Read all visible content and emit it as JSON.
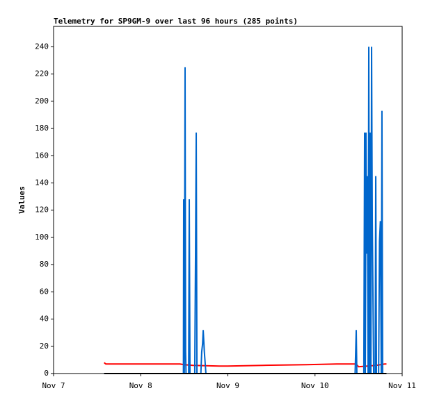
{
  "chart_data": {
    "type": "line",
    "title": "Telemetry for SP9GM-9 over last 96 hours (285 points)",
    "y_label": "Values",
    "xlim": [
      7,
      11
    ],
    "xticks": [
      {
        "value": 7,
        "label": "Nov 7"
      },
      {
        "value": 8,
        "label": "Nov 8"
      },
      {
        "value": 9,
        "label": "Nov 9"
      },
      {
        "value": 10,
        "label": "Nov 10"
      },
      {
        "value": 11,
        "label": "Nov 11"
      }
    ],
    "ylim": [
      0,
      255
    ],
    "yticks": [
      0,
      20,
      40,
      60,
      80,
      100,
      120,
      140,
      160,
      180,
      200,
      220,
      240
    ],
    "series": [
      {
        "color": "#ff0000",
        "x": [
          7.58,
          7.6,
          8.45,
          8.5,
          8.6,
          8.9,
          9.0,
          9.4,
          9.9,
          10.25,
          10.47,
          10.5,
          10.6,
          10.7,
          10.8,
          10.82
        ],
        "values": [
          8,
          7,
          7,
          6.5,
          6,
          5.5,
          5.5,
          6,
          6.5,
          7,
          7,
          5,
          5.5,
          6,
          7,
          7
        ]
      },
      {
        "color": "#0066cc",
        "x": [
          7.58,
          8.49,
          8.493,
          8.5,
          8.509,
          8.515,
          8.52,
          8.55,
          8.557,
          8.565,
          8.62,
          8.629,
          8.637,
          8.645,
          8.69,
          8.7,
          8.71,
          8.717,
          8.73,
          8.748,
          10.46,
          10.473,
          10.48,
          10.56,
          10.569,
          10.577,
          10.585,
          10.593,
          10.601,
          10.609,
          10.617,
          10.625,
          10.633,
          10.641,
          10.649,
          10.657,
          10.665,
          10.673,
          10.681,
          10.69,
          10.697,
          10.705,
          10.73,
          10.74,
          10.75,
          10.76,
          10.768,
          10.776,
          10.784
        ],
        "values": [
          0,
          0,
          128,
          0,
          225,
          16,
          0,
          0,
          128,
          0,
          0,
          88,
          177,
          0,
          0,
          16,
          22,
          32,
          16,
          0,
          0,
          32,
          0,
          0,
          177,
          0,
          177,
          88,
          145,
          0,
          240,
          0,
          177,
          0,
          240,
          112,
          56,
          0,
          0,
          0,
          145,
          0,
          0,
          97,
          112,
          0,
          193,
          0,
          0
        ]
      },
      {
        "color": "#000000",
        "x": [
          7.58,
          10.82
        ],
        "values": [
          0,
          0
        ]
      }
    ]
  }
}
